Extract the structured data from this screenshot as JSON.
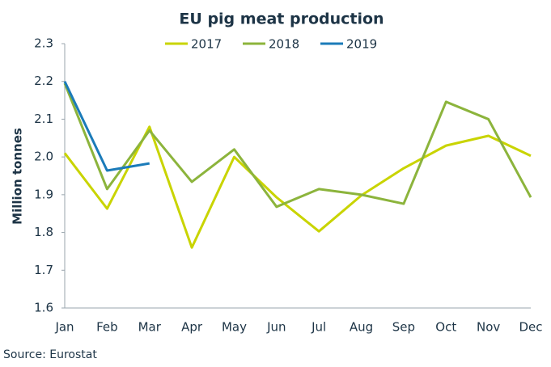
{
  "chart_data": {
    "type": "line",
    "title": "EU pig meat production",
    "y_label": "Million tonnes",
    "source": "Source: Eurostat",
    "categories": [
      "Jan",
      "Feb",
      "Mar",
      "Apr",
      "May",
      "Jun",
      "Jul",
      "Aug",
      "Sep",
      "Oct",
      "Nov",
      "Dec"
    ],
    "series": [
      {
        "name": "2017",
        "color": "#c9d400",
        "values": [
          2.01,
          1.863,
          2.08,
          1.76,
          2.0,
          1.893,
          1.803,
          1.898,
          1.97,
          2.03,
          2.056,
          2.003
        ]
      },
      {
        "name": "2018",
        "color": "#8cb43c",
        "values": [
          2.195,
          1.915,
          2.07,
          1.934,
          2.02,
          1.868,
          1.915,
          1.9,
          1.876,
          2.146,
          2.1,
          1.893
        ]
      },
      {
        "name": "2019",
        "color": "#1b7bb9",
        "values": [
          2.2,
          1.964,
          1.983,
          null,
          null,
          null,
          null,
          null,
          null,
          null,
          null,
          null
        ]
      }
    ],
    "ylim": [
      1.6,
      2.3
    ],
    "yticks": [
      1.6,
      1.7,
      1.8,
      1.9,
      {
        "value": 2,
        "label": "2.0"
      },
      2.1,
      2.2,
      2.3
    ],
    "grid": false,
    "legend": "top"
  }
}
